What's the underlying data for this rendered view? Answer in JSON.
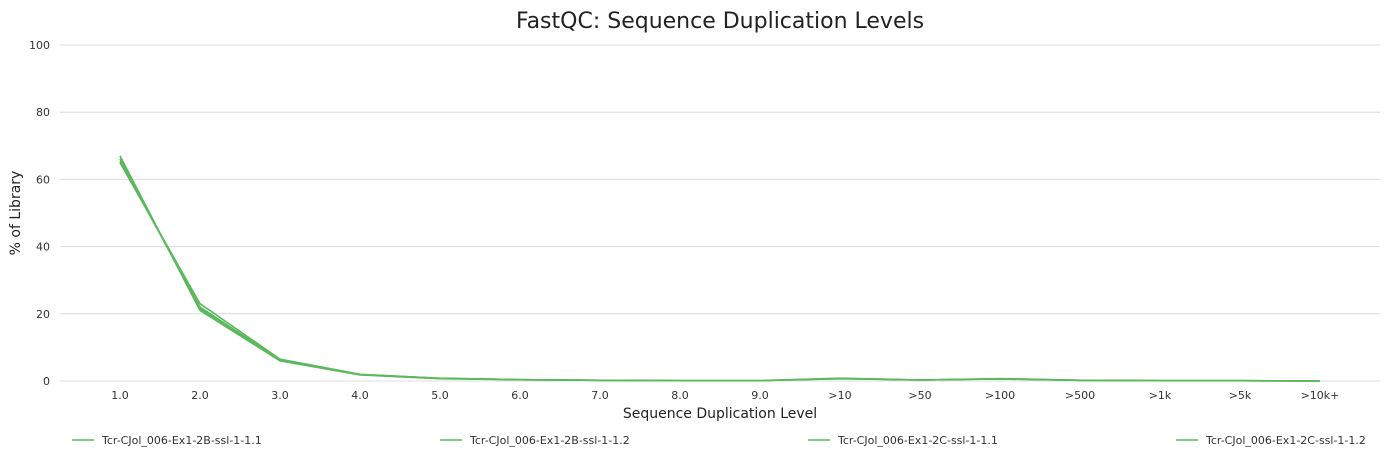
{
  "chart_data": {
    "type": "line",
    "title": "FastQC: Sequence Duplication Levels",
    "xlabel": "Sequence Duplication Level",
    "ylabel": "% of Library",
    "ylim": [
      0,
      100
    ],
    "yticks": [
      0,
      20,
      40,
      60,
      80,
      100
    ],
    "grid": true,
    "legend_position": "bottom",
    "categories": [
      "1.0",
      "2.0",
      "3.0",
      "4.0",
      "5.0",
      "6.0",
      "7.0",
      "8.0",
      "9.0",
      ">10",
      ">50",
      ">100",
      ">500",
      ">1k",
      ">5k",
      ">10k+"
    ],
    "series": [
      {
        "name": "Tcr-CJol_006-Ex1-2B-ssl-1-1.1",
        "color": "#5cb85c",
        "values": [
          65.5,
          22.0,
          6.3,
          1.9,
          0.8,
          0.4,
          0.2,
          0.1,
          0.1,
          0.8,
          0.3,
          0.7,
          0.2,
          0.1,
          0.1,
          0.0
        ]
      },
      {
        "name": "Tcr-CJol_006-Ex1-2B-ssl-1-1.2",
        "color": "#5cb85c",
        "values": [
          66.2,
          21.5,
          6.2,
          1.9,
          0.8,
          0.4,
          0.2,
          0.1,
          0.1,
          0.7,
          0.3,
          0.6,
          0.2,
          0.1,
          0.1,
          0.0
        ]
      },
      {
        "name": "Tcr-CJol_006-Ex1-2C-ssl-1-1.1",
        "color": "#5cb85c",
        "values": [
          67.0,
          21.0,
          6.0,
          1.8,
          0.7,
          0.4,
          0.2,
          0.1,
          0.1,
          0.8,
          0.3,
          0.7,
          0.2,
          0.1,
          0.1,
          0.0
        ]
      },
      {
        "name": "Tcr-CJol_006-Ex1-2C-ssl-1-1.2",
        "color": "#5cb85c",
        "values": [
          65.0,
          23.0,
          6.5,
          2.0,
          0.8,
          0.4,
          0.2,
          0.1,
          0.1,
          0.7,
          0.3,
          0.6,
          0.2,
          0.1,
          0.1,
          0.0
        ]
      }
    ]
  }
}
